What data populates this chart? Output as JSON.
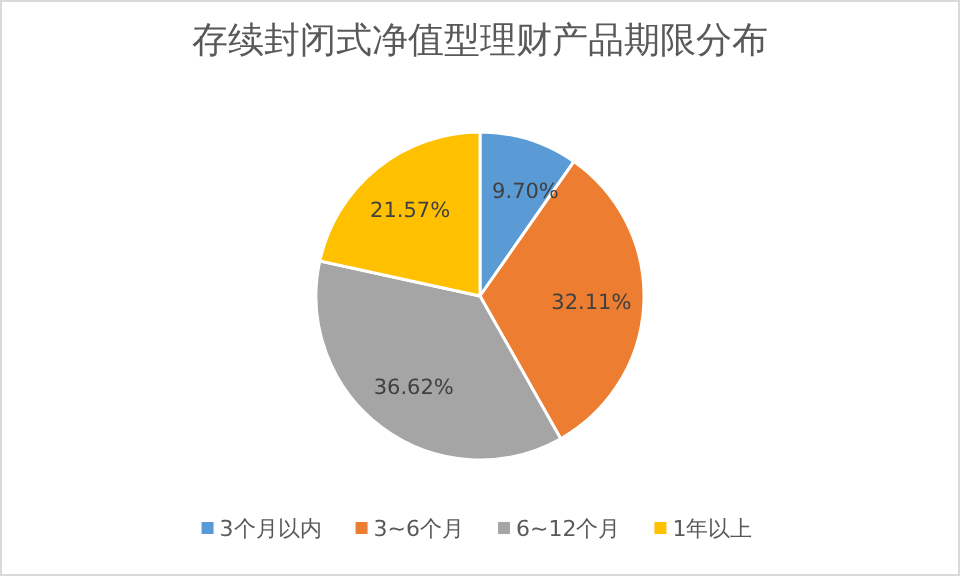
{
  "chart_data": {
    "type": "pie",
    "title": "存续封闭式净值型理财产品期限分布",
    "categories": [
      "3个月以内",
      "3~6个月",
      "6~12个月",
      "1年以上"
    ],
    "values": [
      9.7,
      32.11,
      36.62,
      21.57
    ],
    "colors": [
      "#5b9bd5",
      "#ed7d31",
      "#a5a5a5",
      "#ffc000"
    ],
    "value_labels": [
      "9.70%",
      "32.11%",
      "36.62%",
      "21.57%"
    ],
    "legend": "bottom"
  }
}
